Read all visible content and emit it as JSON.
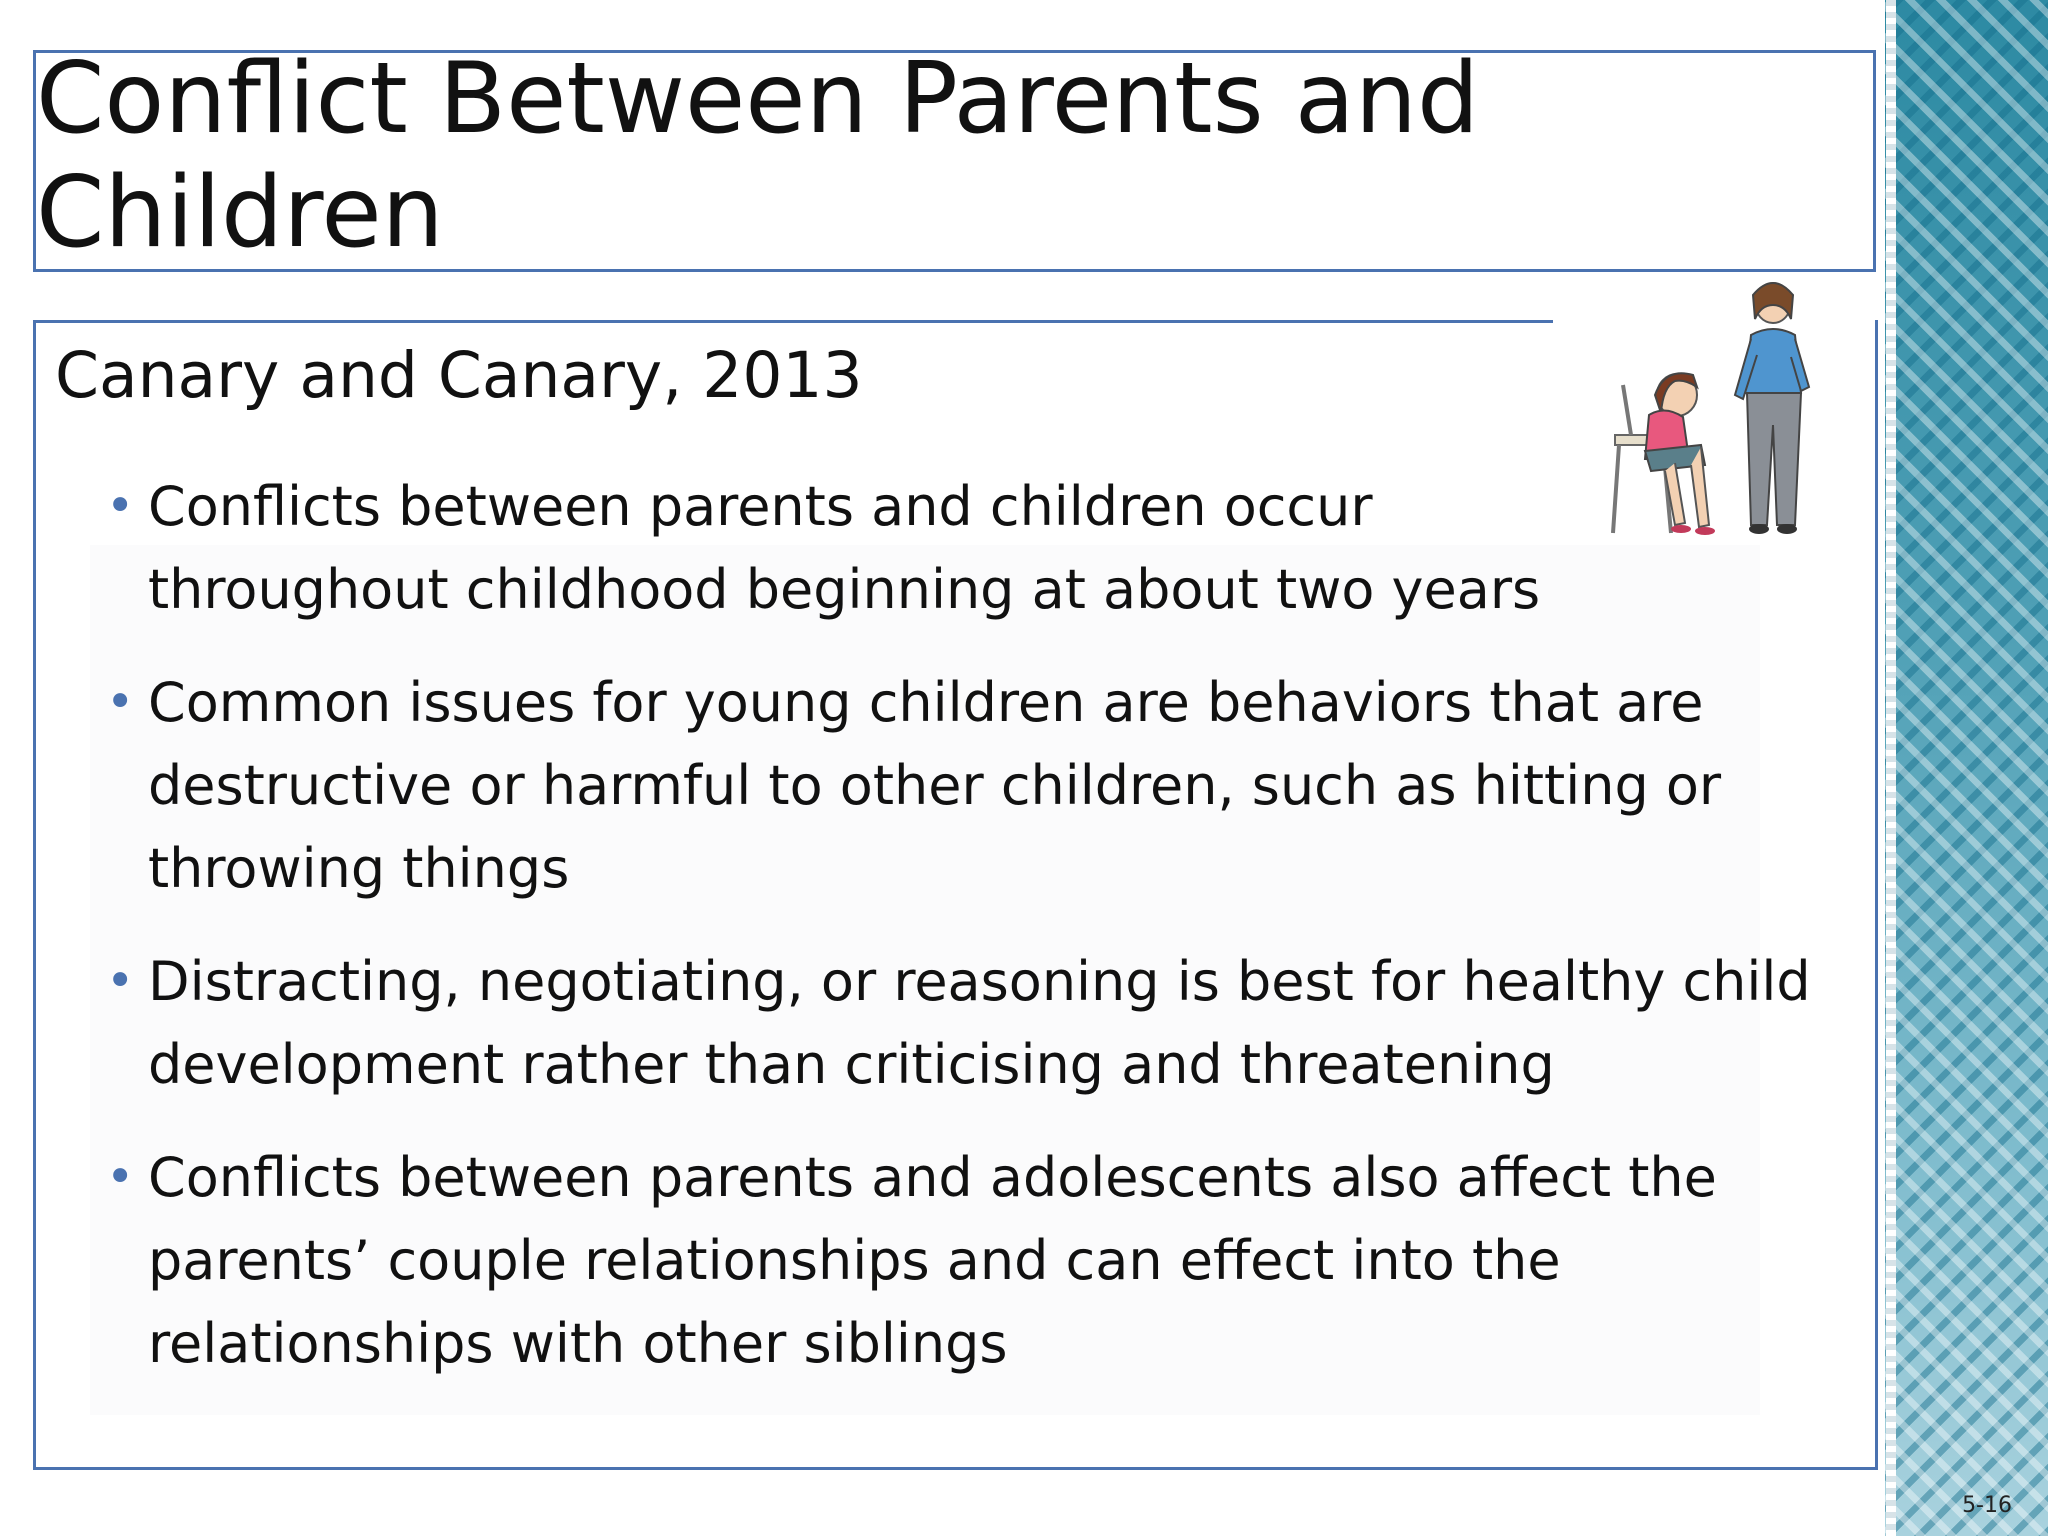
{
  "slide": {
    "title": "Conflict Between Parents and Children",
    "subtitle": "Canary and Canary, 2013",
    "bullets": [
      "Conflicts between parents and children occur throughout childhood beginning at about two years",
      "Common issues for young children are behaviors that are destructive or harmful to other children, such as hitting or throwing things",
      "Distracting, negotiating, or reasoning is best for healthy child development rather than criticising and threatening",
      "Conflicts between parents and adolescents also affect the parents’ couple relationships and can effect into the relationships with other siblings"
    ],
    "slide_number": "5-16",
    "illustration": "parent-and-child-clipart"
  },
  "colors": {
    "accent": "#4a72b0",
    "side_strip": "#5ea8bb"
  }
}
